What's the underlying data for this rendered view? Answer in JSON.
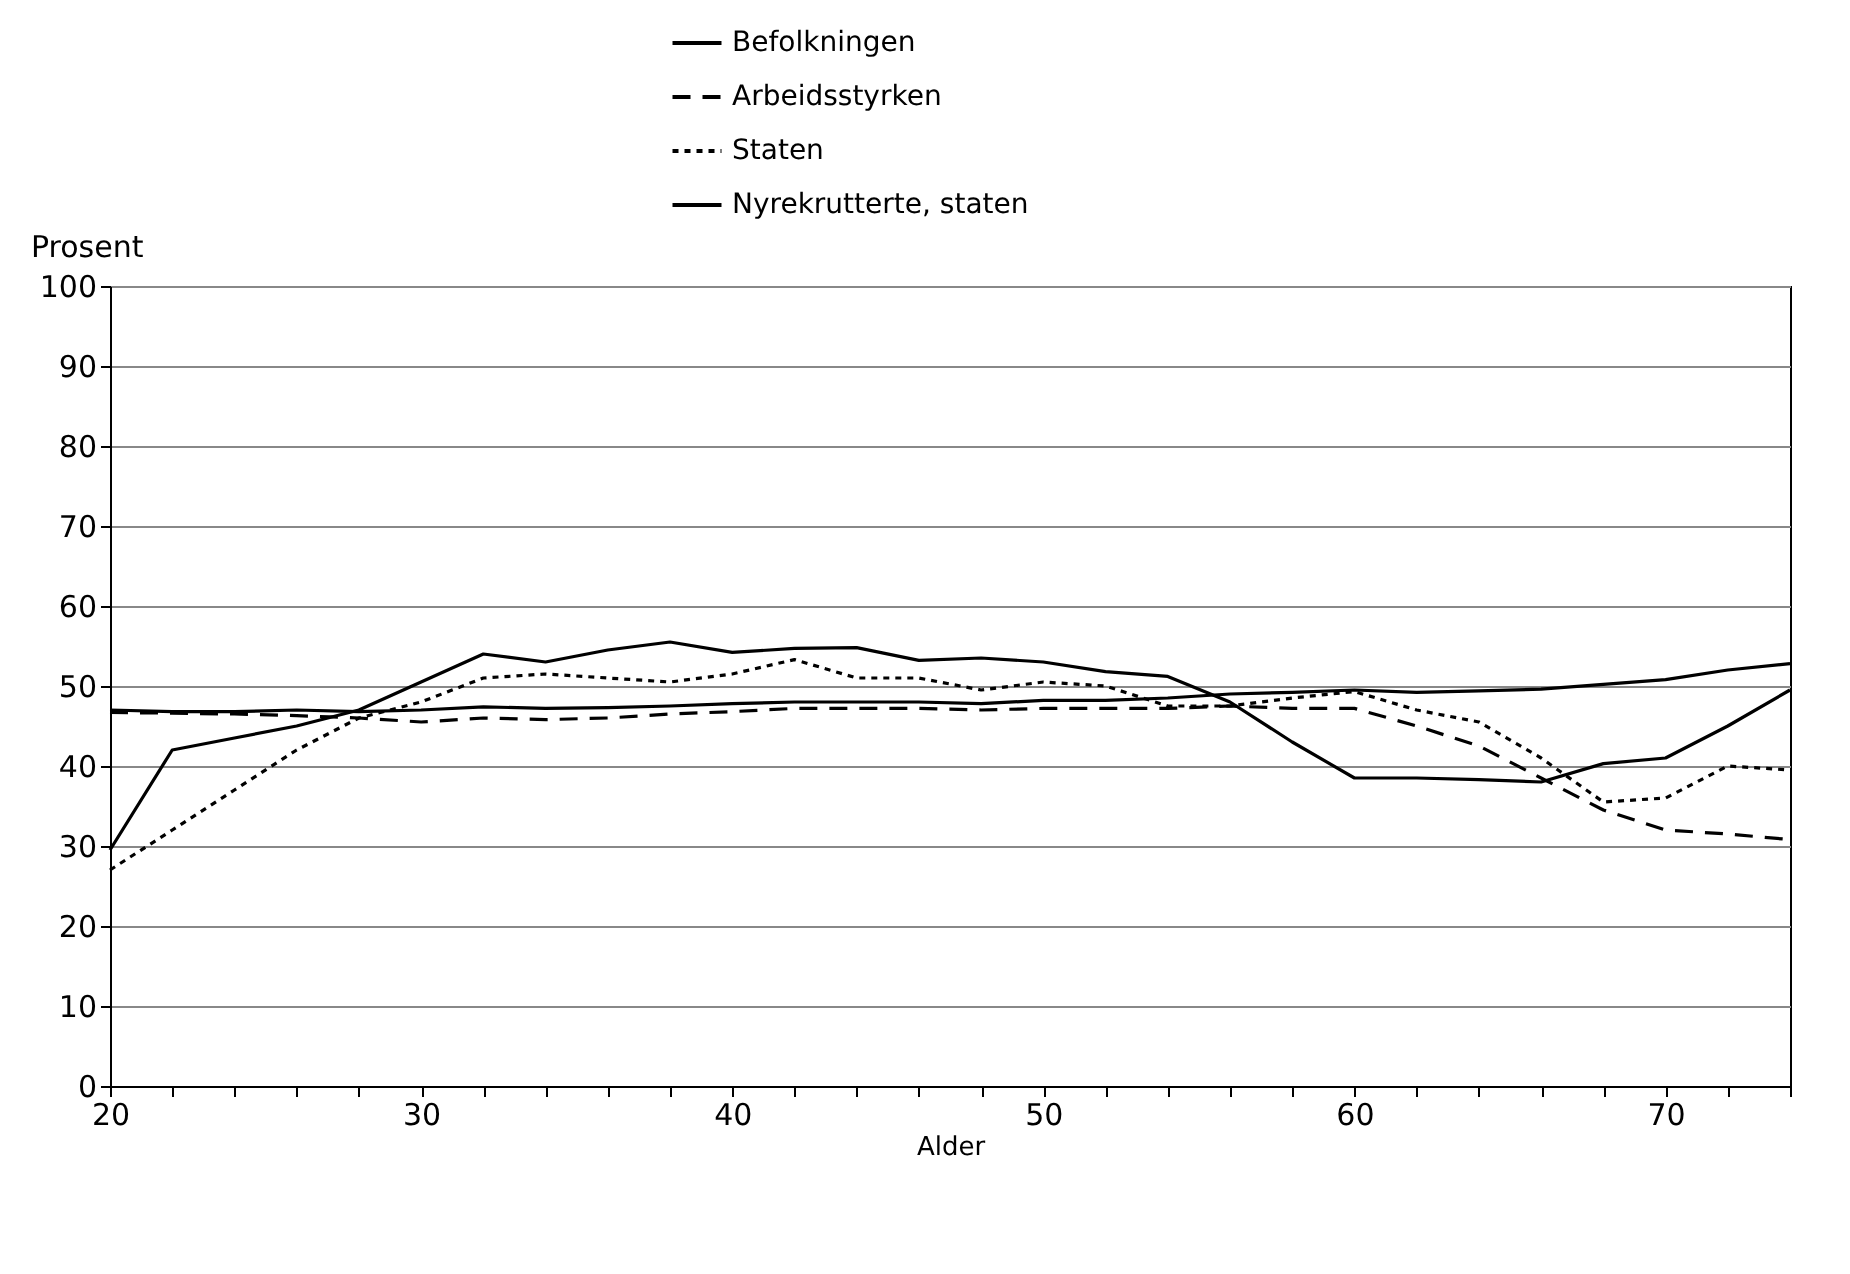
{
  "chart_data": {
    "type": "line",
    "xlabel": "Alder",
    "ylabel": "Prosent",
    "x": [
      20,
      22,
      24,
      26,
      28,
      30,
      32,
      34,
      36,
      38,
      40,
      42,
      44,
      46,
      48,
      50,
      52,
      54,
      56,
      58,
      60,
      62,
      64,
      66,
      68,
      70,
      72,
      74
    ],
    "series": [
      {
        "name": "Befolkningen",
        "color": "#000000",
        "line_style": "solid",
        "values": [
          47,
          46.8,
          46.8,
          47,
          46.8,
          47,
          47.4,
          47.2,
          47.3,
          47.5,
          47.8,
          48,
          48,
          48,
          47.8,
          48.2,
          48.2,
          48.5,
          49,
          49.2,
          49.5,
          49.2,
          49.4,
          49.6,
          50.2,
          50.8,
          52,
          52.8
        ]
      },
      {
        "name": "Arbeidsstyrken",
        "color": "#000000",
        "line_style": "dashed",
        "values": [
          46.7,
          46.6,
          46.5,
          46.3,
          46,
          45.5,
          46,
          45.8,
          46,
          46.5,
          46.8,
          47.2,
          47.2,
          47.2,
          47,
          47.2,
          47.2,
          47.2,
          47.5,
          47.2,
          47.2,
          45,
          42.5,
          38.5,
          34.5,
          32,
          31.5,
          30.8
        ]
      },
      {
        "name": "Staten",
        "color": "#000000",
        "line_style": "dotted",
        "values": [
          27,
          32,
          37,
          42,
          46,
          48,
          51,
          51.5,
          51,
          50.5,
          51.5,
          53.3,
          51,
          51,
          49.5,
          50.5,
          50,
          47.5,
          47.5,
          48.5,
          49.3,
          47,
          45.5,
          41,
          35.5,
          36,
          40,
          39.5
        ]
      },
      {
        "name": "Nyrekrutterte, staten",
        "color": "#000000",
        "line_style": "solid",
        "values": [
          29.5,
          42,
          43.5,
          45,
          47,
          50.5,
          54,
          53,
          54.5,
          55.5,
          54.2,
          54.7,
          54.8,
          53.2,
          53.5,
          53,
          51.8,
          51.2,
          48,
          43,
          38.5,
          38.5,
          38.3,
          38,
          40.3,
          41,
          45,
          49.5
        ]
      }
    ],
    "xlim": [
      20,
      74
    ],
    "xticks": [
      20,
      {
        "value": 22,
        "label": null
      },
      {
        "value": 24,
        "label": null
      },
      {
        "value": 26,
        "label": null
      },
      {
        "value": 28,
        "label": null
      },
      30,
      {
        "value": 32,
        "label": null
      },
      {
        "value": 34,
        "label": null
      },
      {
        "value": 36,
        "label": null
      },
      {
        "value": 38,
        "label": null
      },
      40,
      {
        "value": 42,
        "label": null
      },
      {
        "value": 44,
        "label": null
      },
      {
        "value": 46,
        "label": null
      },
      {
        "value": 48,
        "label": null
      },
      50,
      {
        "value": 52,
        "label": null
      },
      {
        "value": 54,
        "label": null
      },
      {
        "value": 56,
        "label": null
      },
      {
        "value": 58,
        "label": null
      },
      60,
      {
        "value": 62,
        "label": null
      },
      {
        "value": 64,
        "label": null
      },
      {
        "value": 66,
        "label": null
      },
      {
        "value": 68,
        "label": null
      },
      70,
      {
        "value": 72,
        "label": null
      },
      {
        "value": 74,
        "label": null
      }
    ],
    "ylim": [
      0,
      100
    ],
    "yticks": [
      0,
      10,
      20,
      30,
      40,
      50,
      60,
      70,
      80,
      90,
      100
    ],
    "grid": "y",
    "legend": "top",
    "marker": "none"
  }
}
